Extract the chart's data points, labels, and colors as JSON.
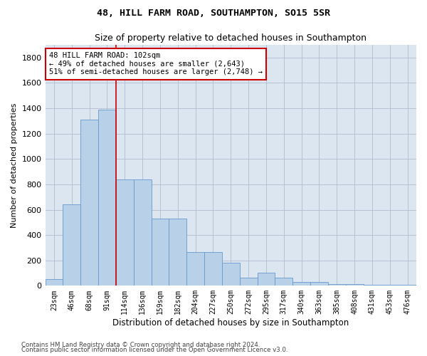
{
  "title1": "48, HILL FARM ROAD, SOUTHAMPTON, SO15 5SR",
  "title2": "Size of property relative to detached houses in Southampton",
  "xlabel": "Distribution of detached houses by size in Southampton",
  "ylabel": "Number of detached properties",
  "categories": [
    "23sqm",
    "46sqm",
    "68sqm",
    "91sqm",
    "114sqm",
    "136sqm",
    "159sqm",
    "182sqm",
    "204sqm",
    "227sqm",
    "250sqm",
    "272sqm",
    "295sqm",
    "317sqm",
    "340sqm",
    "363sqm",
    "385sqm",
    "408sqm",
    "431sqm",
    "453sqm",
    "476sqm"
  ],
  "values": [
    50,
    640,
    1310,
    1390,
    840,
    840,
    530,
    530,
    265,
    265,
    180,
    65,
    105,
    65,
    30,
    30,
    15,
    15,
    10,
    10,
    10
  ],
  "bar_color": "#b8d0e8",
  "bar_edge_color": "#6699cc",
  "vline_color": "#cc0000",
  "annotation_text": "48 HILL FARM ROAD: 102sqm\n← 49% of detached houses are smaller (2,643)\n51% of semi-detached houses are larger (2,748) →",
  "annotation_box_color": "#ffffff",
  "annotation_box_edge": "#cc0000",
  "ylim": [
    0,
    1900
  ],
  "yticks": [
    0,
    200,
    400,
    600,
    800,
    1000,
    1200,
    1400,
    1600,
    1800
  ],
  "background_color": "#dce6f1",
  "footer1": "Contains HM Land Registry data © Crown copyright and database right 2024.",
  "footer2": "Contains public sector information licensed under the Open Government Licence v3.0."
}
